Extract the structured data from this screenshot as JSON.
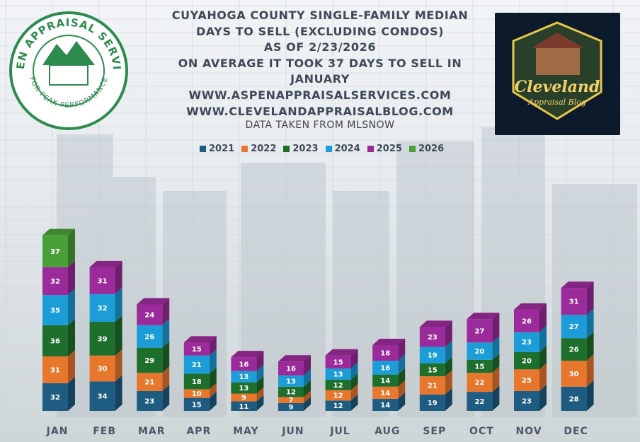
{
  "header": {
    "title_lines": [
      "CUYAHOGA COUNTY SINGLE-FAMILY MEDIAN",
      "DAYS TO SELL (EXCLUDING CONDOS)",
      "AS OF 2/23/2026",
      "ON AVERAGE IT TOOK 37 DAYS TO SELL IN",
      "JANUARY",
      "WWW.ASPENAPPRAISALSERVICES.COM",
      "WWW.CLEVELANDAPPRAISALBLOG.COM"
    ],
    "source_note": "DATA TAKEN FROM MLSNOW"
  },
  "logos": {
    "left": {
      "top_text": "ASPEN APPRAISAL SERVICES",
      "bottom_text": "FOR PEAK PERFORMANCE",
      "color": "#2e8b4e"
    },
    "right": {
      "script_line1": "Cleveland",
      "script_line2": "Appraisal Blog",
      "accent": "#e8c64a"
    }
  },
  "chart_data": {
    "type": "bar",
    "stacked": true,
    "categories": [
      "JAN",
      "FEB",
      "MAR",
      "APR",
      "MAY",
      "JUN",
      "JUL",
      "AUG",
      "SEP",
      "OCT",
      "NOV",
      "DEC"
    ],
    "series": [
      {
        "name": "2021",
        "color": "#1f5c82",
        "values": [
          32,
          34,
          23,
          15,
          11,
          9,
          12,
          14,
          19,
          22,
          23,
          28
        ]
      },
      {
        "name": "2022",
        "color": "#e8772e",
        "values": [
          31,
          30,
          21,
          10,
          9,
          7,
          12,
          14,
          21,
          22,
          25,
          30
        ]
      },
      {
        "name": "2023",
        "color": "#1e6e2c",
        "values": [
          36,
          39,
          29,
          18,
          13,
          12,
          12,
          14,
          15,
          15,
          20,
          26
        ]
      },
      {
        "name": "2024",
        "color": "#1c9dd8",
        "values": [
          35,
          32,
          26,
          21,
          13,
          13,
          13,
          16,
          19,
          20,
          23,
          27
        ]
      },
      {
        "name": "2025",
        "color": "#9b2a9a",
        "values": [
          32,
          31,
          24,
          15,
          16,
          16,
          15,
          18,
          23,
          27,
          26,
          31
        ]
      },
      {
        "name": "2026",
        "color": "#4aa038",
        "values": [
          37,
          null,
          null,
          null,
          null,
          null,
          null,
          null,
          null,
          null,
          null,
          null
        ]
      }
    ],
    "legend_position": "top-center",
    "grid": true
  }
}
